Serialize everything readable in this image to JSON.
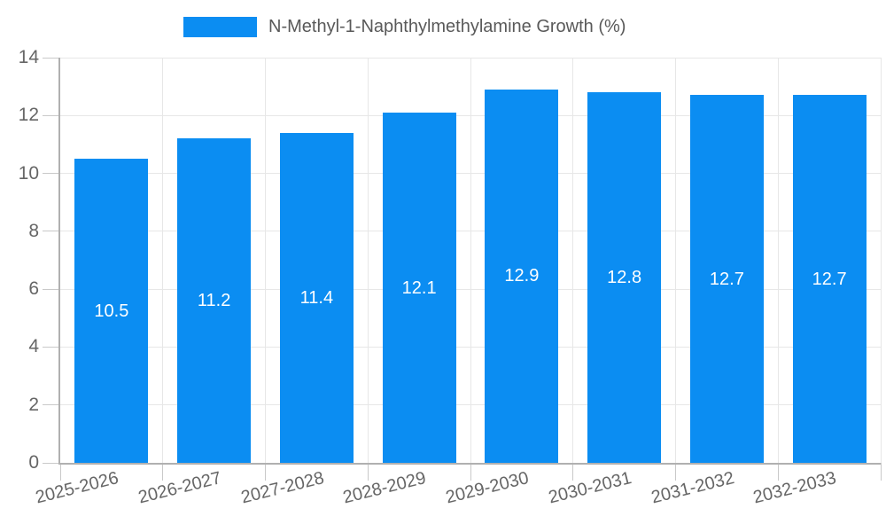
{
  "chart_data": {
    "type": "bar",
    "title": "N-Methyl-1-Naphthylmethylamine Growth (%)",
    "legend_entries": [
      "N-Methyl-1-Naphthylmethylamine Growth (%)"
    ],
    "legend_position": "top-center",
    "categories": [
      "2025-2026",
      "2026-2027",
      "2027-2028",
      "2028-2029",
      "2029-2030",
      "2030-2031",
      "2031-2032",
      "2032-2033"
    ],
    "series": [
      {
        "name": "N-Methyl-1-Naphthylmethylamine Growth (%)",
        "values": [
          10.5,
          11.2,
          11.4,
          12.1,
          12.9,
          12.8,
          12.7,
          12.7
        ]
      }
    ],
    "bar_labels": [
      "10.5",
      "11.2",
      "11.4",
      "12.1",
      "12.9",
      "12.8",
      "12.7",
      "12.7"
    ],
    "xlabel": "",
    "ylabel": "",
    "ylim": [
      0,
      14
    ],
    "yticks": [
      0,
      2,
      4,
      6,
      8,
      10,
      12,
      14
    ],
    "grid": true,
    "x_label_rotation_deg": -14,
    "colors": {
      "bar": "#0b8df2",
      "grid": "#e7e7e7",
      "axis": "#b0b0b0",
      "tick": "#c9c9c9",
      "axis_text": "#666666",
      "legend_text": "#595959",
      "bar_label_text": "#ffffff",
      "background": "#ffffff"
    }
  }
}
